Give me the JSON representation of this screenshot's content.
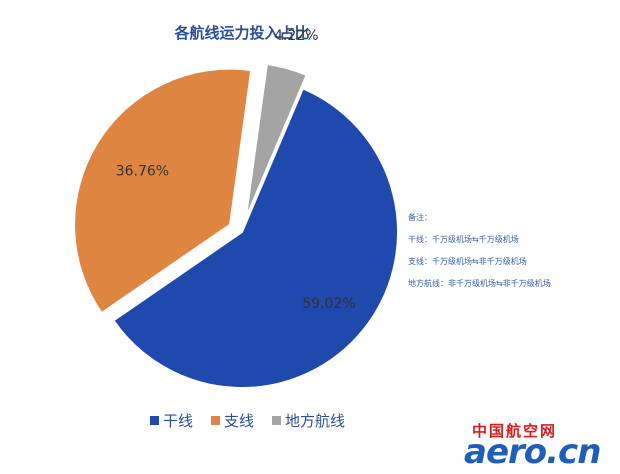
{
  "chart_data": {
    "type": "pie",
    "title": "各航线运力投入占比",
    "slices": [
      {
        "name": "干线",
        "value": 59.02,
        "label": "59.02%",
        "color": "#1f49ac",
        "exploded": false
      },
      {
        "name": "支线",
        "value": 36.76,
        "label": "36.76%",
        "color": "#df8542",
        "exploded": true
      },
      {
        "name": "地方航线",
        "value": 4.22,
        "label": "4.22%",
        "color": "#a4a4a4",
        "exploded": true
      }
    ],
    "legend_position": "bottom"
  },
  "notes": {
    "heading": "备注：",
    "lines": [
      "干线：千万级机场⇆千万级机场",
      "支线：千万级机场⇆非千万级机场",
      "地方航线：非千万级机场⇆非千万级机场"
    ]
  },
  "legend": [
    {
      "label": "干线",
      "color": "#1f49ac"
    },
    {
      "label": "支线",
      "color": "#df8542"
    },
    {
      "label": "地方航线",
      "color": "#a4a4a4"
    }
  ],
  "watermark": {
    "cn": "中国航空网",
    "en": "aero.cn"
  }
}
